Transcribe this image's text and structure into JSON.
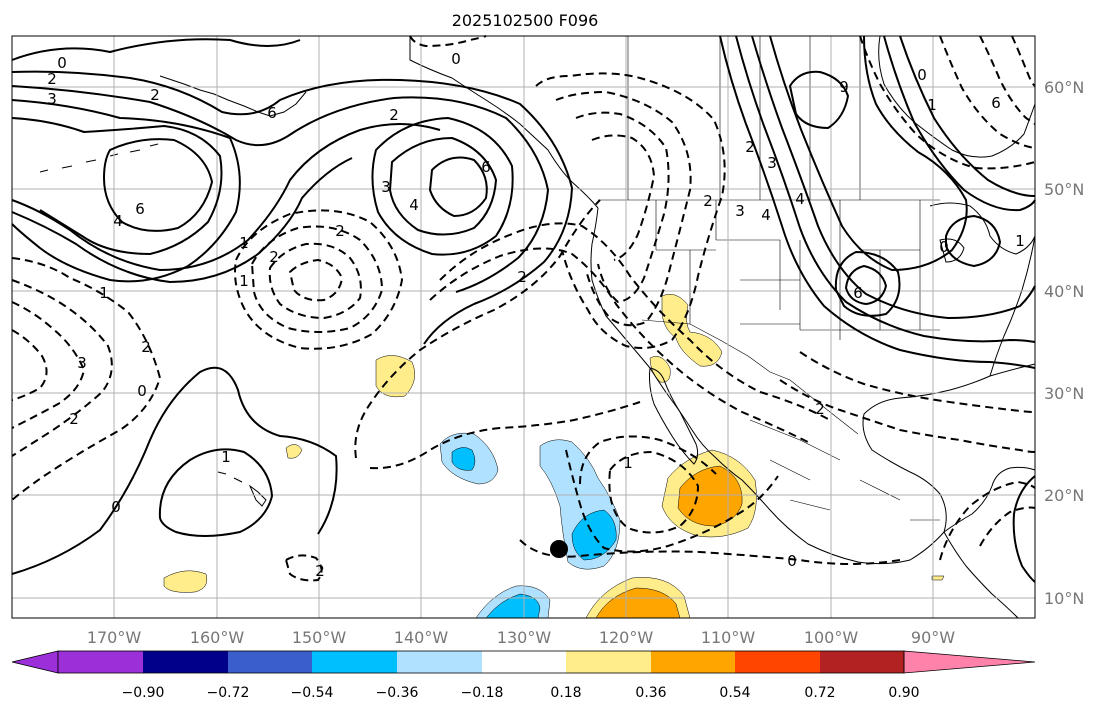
{
  "title": "2025102500 F096",
  "lon_labels": [
    "170°W",
    "160°W",
    "150°W",
    "140°W",
    "130°W",
    "120°W",
    "110°W",
    "100°W",
    "90°W"
  ],
  "lat_labels": [
    "60°N",
    "50°N",
    "40°N",
    "30°N",
    "20°N",
    "10°N"
  ],
  "colorbar": {
    "ticks": [
      "−0.90",
      "−0.72",
      "−0.54",
      "−0.36",
      "−0.18",
      "0.18",
      "0.36",
      "0.54",
      "0.72",
      "0.90"
    ],
    "colors": {
      "under": "#9b30d9",
      "bins": [
        "#00008b",
        "#3a5fcd",
        "#00bfff",
        "#b0e2ff",
        "#ffffff",
        "#ffec8b",
        "#ffa500",
        "#ff4500",
        "#b22222"
      ],
      "over": "#ff82ab"
    }
  },
  "contour_labels": {
    "pos": [
      "0",
      "2",
      "3",
      "2",
      "6",
      "4",
      "2",
      "3",
      "4",
      "6",
      "1",
      "6",
      "1",
      "0",
      "1",
      "2",
      "3",
      "4",
      "6",
      "9",
      "0",
      "6",
      "1",
      "0"
    ],
    "neg": [
      "0",
      "1",
      "2",
      "3",
      "2",
      "0",
      "2",
      "1",
      "2",
      "2",
      "2",
      "4",
      "3",
      "2",
      "1",
      "0",
      "2"
    ]
  },
  "marker": "storm-position"
}
